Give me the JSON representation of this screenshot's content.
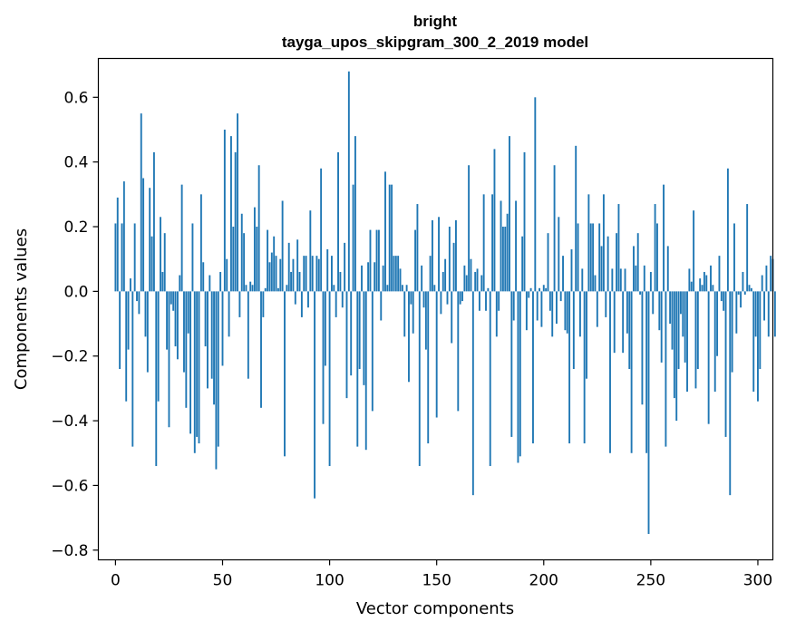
{
  "chart_data": {
    "type": "bar",
    "title": "bright",
    "subtitle": "tayga_upos_skipgram_300_2_2019 model",
    "xlabel": "Vector components",
    "ylabel": "Components values",
    "xlim": [
      -8,
      307
    ],
    "ylim": [
      -0.83,
      0.72
    ],
    "x_ticks": [
      0,
      50,
      100,
      150,
      200,
      250,
      300
    ],
    "y_ticks": [
      -0.8,
      -0.6,
      -0.4,
      -0.2,
      0.0,
      0.2,
      0.4,
      0.6
    ],
    "x_tick_labels": [
      "0",
      "50",
      "100",
      "150",
      "200",
      "250",
      "300"
    ],
    "y_tick_labels": [
      "−0.8",
      "−0.6",
      "−0.4",
      "−0.2",
      "0.0",
      "0.2",
      "0.4",
      "0.6"
    ],
    "bar_color": "#1f77b4",
    "grid": false,
    "values": [
      0.21,
      0.29,
      -0.24,
      0.21,
      0.34,
      -0.34,
      -0.18,
      0.04,
      -0.48,
      0.21,
      -0.03,
      -0.07,
      0.55,
      0.35,
      -0.14,
      -0.25,
      0.32,
      0.17,
      0.43,
      -0.54,
      -0.34,
      0.23,
      0.06,
      0.18,
      -0.18,
      -0.42,
      -0.04,
      -0.06,
      -0.17,
      -0.21,
      0.05,
      0.33,
      -0.25,
      -0.36,
      -0.13,
      -0.44,
      0.21,
      -0.5,
      -0.45,
      -0.47,
      0.3,
      0.09,
      -0.17,
      -0.3,
      0.05,
      -0.27,
      -0.35,
      -0.55,
      -0.48,
      0.06,
      -0.23,
      0.5,
      0.1,
      -0.14,
      0.48,
      0.2,
      0.43,
      0.55,
      -0.08,
      0.24,
      0.18,
      0.02,
      -0.27,
      0.03,
      0.02,
      0.26,
      0.2,
      0.39,
      -0.36,
      -0.08,
      0.01,
      0.19,
      0.09,
      0.12,
      0.17,
      0.11,
      0.01,
      0.1,
      0.28,
      -0.51,
      0.02,
      0.15,
      0.06,
      0.1,
      -0.04,
      0.16,
      0.06,
      -0.08,
      0.11,
      0.11,
      -0.05,
      0.25,
      0.11,
      -0.64,
      0.11,
      0.1,
      0.38,
      -0.41,
      -0.23,
      0.13,
      -0.54,
      0.11,
      0.02,
      -0.08,
      0.43,
      0.06,
      -0.05,
      0.15,
      -0.33,
      0.68,
      -0.26,
      0.33,
      0.48,
      -0.48,
      -0.24,
      0.08,
      -0.29,
      -0.49,
      0.09,
      0.19,
      -0.37,
      0.09,
      0.19,
      0.19,
      -0.09,
      0.08,
      0.37,
      0.02,
      0.33,
      0.33,
      0.11,
      0.11,
      0.11,
      0.07,
      0.02,
      -0.14,
      0.02,
      -0.28,
      -0.04,
      -0.13,
      0.19,
      0.27,
      -0.54,
      0.08,
      -0.05,
      -0.18,
      -0.47,
      0.11,
      0.22,
      0.02,
      -0.39,
      0.23,
      -0.07,
      0.06,
      0.1,
      -0.04,
      0.2,
      -0.16,
      0.15,
      0.22,
      -0.37,
      -0.04,
      -0.03,
      0.08,
      0.05,
      0.39,
      0.1,
      -0.63,
      0.06,
      0.07,
      -0.06,
      0.05,
      0.3,
      -0.06,
      0.01,
      -0.54,
      0.3,
      0.44,
      -0.14,
      -0.06,
      0.28,
      0.2,
      0.2,
      0.24,
      0.48,
      -0.45,
      -0.09,
      0.28,
      -0.53,
      -0.51,
      0.17,
      0.43,
      -0.12,
      -0.02,
      0.01,
      -0.47,
      0.6,
      -0.09,
      0.01,
      -0.11,
      0.02,
      0.01,
      0.18,
      -0.06,
      -0.14,
      0.39,
      -0.1,
      0.23,
      -0.03,
      0.11,
      -0.12,
      -0.13,
      -0.47,
      0.13,
      -0.24,
      0.45,
      0.21,
      -0.14,
      0.07,
      -0.47,
      -0.27,
      0.3,
      0.21,
      0.21,
      0.05,
      -0.11,
      0.21,
      0.14,
      0.3,
      -0.08,
      0.17,
      -0.5,
      0.07,
      -0.19,
      0.18,
      0.27,
      0.07,
      -0.19,
      0.07,
      -0.13,
      -0.24,
      -0.5,
      0.14,
      0.08,
      0.18,
      -0.01,
      -0.35,
      0.08,
      -0.5,
      -0.75,
      0.06,
      -0.07,
      0.27,
      0.21,
      -0.12,
      -0.22,
      0.33,
      -0.48,
      0.14,
      -0.1,
      -0.18,
      -0.33,
      -0.4,
      -0.24,
      -0.07,
      -0.14,
      -0.22,
      -0.31,
      0.07,
      0.03,
      0.25,
      -0.3,
      -0.24,
      0.04,
      0.02,
      0.06,
      0.05,
      -0.41,
      0.08,
      0.02,
      -0.31,
      -0.2,
      0.11,
      -0.03,
      -0.06,
      -0.45,
      0.38,
      -0.63,
      -0.25,
      0.21,
      -0.13,
      -0.01,
      -0.05,
      0.06,
      -0.01,
      0.27,
      0.02,
      0.01,
      -0.31,
      -0.14,
      -0.34,
      -0.24,
      0.05,
      -0.09,
      0.08,
      -0.14,
      0.11,
      0.1,
      -0.14
    ]
  }
}
